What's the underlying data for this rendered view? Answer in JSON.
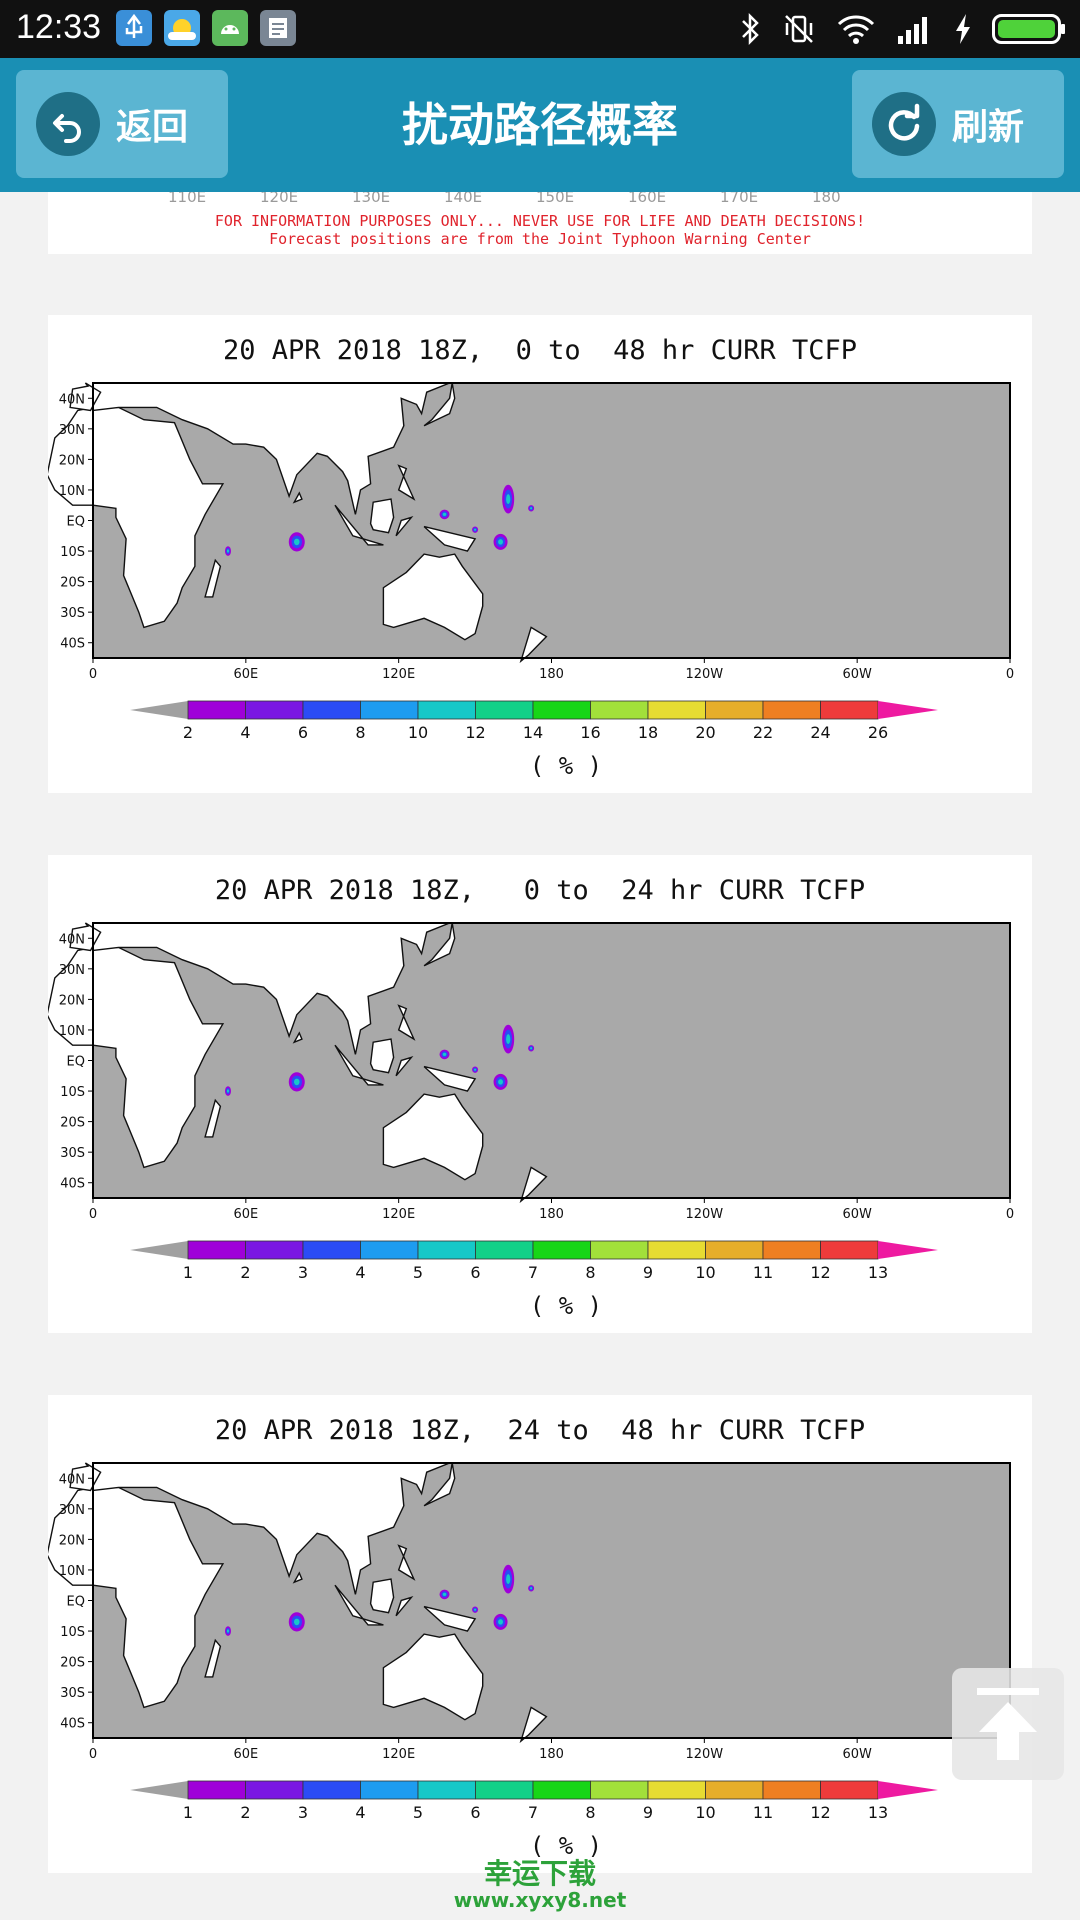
{
  "status_bar": {
    "time": "12:33"
  },
  "header": {
    "back_label": "返回",
    "title": "扰动路径概率",
    "refresh_label": "刷新"
  },
  "top_card": {
    "axis_ticks": [
      "110E",
      "120E",
      "130E",
      "140E",
      "150E",
      "160E",
      "170E",
      "180"
    ],
    "disclaimer_line1": "FOR INFORMATION PURPOSES ONLY... NEVER USE FOR LIFE AND DEATH DECISIONS!",
    "disclaimer_line2": "Forecast positions are from the Joint Typhoon Warning Center"
  },
  "map_axes": {
    "lat_labels": [
      "40N",
      "30N",
      "20N",
      "10N",
      "EQ",
      "10S",
      "20S",
      "30S",
      "40S"
    ],
    "lon_labels": [
      "0",
      "60E",
      "120E",
      "180",
      "120W",
      "60W",
      "0"
    ]
  },
  "colorbar_colors": [
    "#9f00d9",
    "#7a17e3",
    "#2b4cf5",
    "#1e9cf0",
    "#16c8c8",
    "#12d088",
    "#17d617",
    "#a2e03a",
    "#e6dc32",
    "#e6ae2a",
    "#ee7f22",
    "#ee3b3b",
    "#ee1aa0"
  ],
  "charts": [
    {
      "title": "20 APR 2018 18Z,  0 to  48 hr CURR TCFP",
      "unit": "( % )",
      "colorbar_ticks": [
        "2",
        "4",
        "6",
        "8",
        "10",
        "12",
        "14",
        "16",
        "18",
        "20",
        "22",
        "24",
        "26"
      ]
    },
    {
      "title": "20 APR 2018 18Z,   0 to  24 hr CURR TCFP",
      "unit": "( % )",
      "colorbar_ticks": [
        "1",
        "2",
        "3",
        "4",
        "5",
        "6",
        "7",
        "8",
        "9",
        "10",
        "11",
        "12",
        "13"
      ]
    },
    {
      "title": "20 APR 2018 18Z,  24 to  48 hr CURR TCFP",
      "unit": "( % )",
      "colorbar_ticks": [
        "1",
        "2",
        "3",
        "4",
        "5",
        "6",
        "7",
        "8",
        "9",
        "10",
        "11",
        "12",
        "13"
      ]
    }
  ],
  "watermark": {
    "brand": "幸运下载",
    "url": "www.xyxy8.net"
  }
}
